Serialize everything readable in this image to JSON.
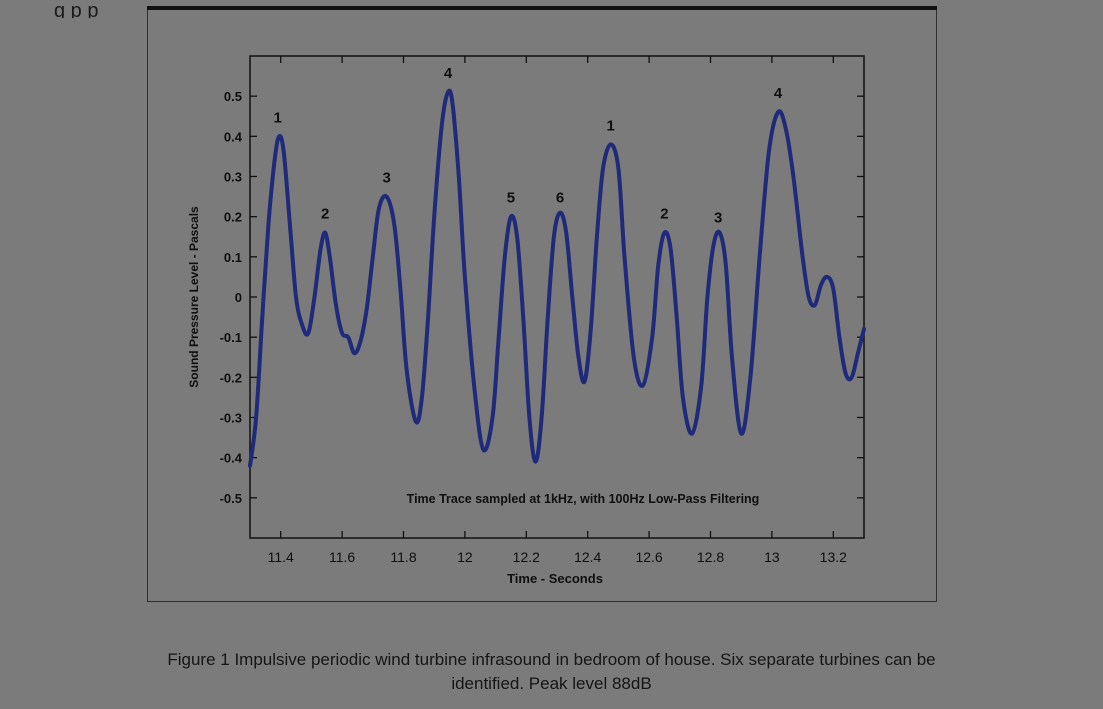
{
  "page": {
    "top_cut_text": "g     p     p",
    "caption_line1": "Figure 1  Impulsive periodic wind turbine infrasound in bedroom of house.  Six separate turbines can be",
    "caption_line2": "identified.  Peak level 88dB"
  },
  "colors": {
    "background": "#7b7b7b",
    "trace": "#1f2a7a",
    "axis": "#111111"
  },
  "chart_data": {
    "type": "line",
    "title": "",
    "annotation": "Time Trace sampled at 1kHz, with 100Hz Low-Pass Filtering",
    "xlabel": "Time - Seconds",
    "ylabel": "Sound Pressure Level - Pascals",
    "xlim": [
      11.3,
      13.3
    ],
    "ylim": [
      -0.6,
      0.6
    ],
    "x_ticks": [
      11.4,
      11.6,
      11.8,
      12,
      12.2,
      12.4,
      12.6,
      12.8,
      13,
      13.2
    ],
    "x_tick_labels": [
      "11.4",
      "11.6",
      "11.8",
      "12",
      "12.2",
      "12.4",
      "12.6",
      "12.8",
      "13",
      "13.2"
    ],
    "y_ticks": [
      -0.5,
      -0.4,
      -0.3,
      -0.2,
      -0.1,
      0,
      0.1,
      0.2,
      0.3,
      0.4,
      0.5
    ],
    "y_tick_labels": [
      "-0.5",
      "-0.4",
      "-0.3",
      "-0.2",
      "-0.1",
      "0",
      "0.1",
      "0.2",
      "0.3",
      "0.4",
      "0.5"
    ],
    "grid": false,
    "series": [
      {
        "x": [
          11.3,
          11.32,
          11.34,
          11.36,
          11.38,
          11.395,
          11.41,
          11.43,
          11.45,
          11.47,
          11.49,
          11.51,
          11.53,
          11.545,
          11.56,
          11.58,
          11.6,
          11.62,
          11.64,
          11.66,
          11.68,
          11.7,
          11.72,
          11.745,
          11.77,
          11.79,
          11.81,
          11.84,
          11.86,
          11.88,
          11.9,
          11.925,
          11.945,
          11.96,
          11.98,
          12.0,
          12.03,
          12.06,
          12.09,
          12.11,
          12.13,
          12.15,
          12.17,
          12.19,
          12.21,
          12.23,
          12.25,
          12.27,
          12.29,
          12.31,
          12.33,
          12.35,
          12.37,
          12.39,
          12.41,
          12.43,
          12.45,
          12.475,
          12.5,
          12.52,
          12.55,
          12.58,
          12.61,
          12.63,
          12.65,
          12.67,
          12.69,
          12.71,
          12.74,
          12.77,
          12.79,
          12.81,
          12.83,
          12.85,
          12.87,
          12.9,
          12.93,
          12.96,
          12.99,
          13.02,
          13.045,
          13.07,
          13.1,
          13.12,
          13.14,
          13.16,
          13.18,
          13.2,
          13.22,
          13.24,
          13.26,
          13.28,
          13.3
        ],
        "y": [
          -0.42,
          -0.3,
          -0.05,
          0.18,
          0.34,
          0.4,
          0.36,
          0.18,
          0.0,
          -0.07,
          -0.09,
          0.0,
          0.12,
          0.16,
          0.1,
          -0.02,
          -0.09,
          -0.1,
          -0.14,
          -0.11,
          -0.03,
          0.1,
          0.22,
          0.25,
          0.18,
          0.02,
          -0.18,
          -0.31,
          -0.25,
          -0.05,
          0.2,
          0.43,
          0.51,
          0.48,
          0.3,
          0.05,
          -0.22,
          -0.38,
          -0.3,
          -0.1,
          0.1,
          0.2,
          0.15,
          -0.05,
          -0.3,
          -0.41,
          -0.3,
          -0.05,
          0.15,
          0.21,
          0.16,
          0.0,
          -0.15,
          -0.21,
          -0.08,
          0.15,
          0.32,
          0.38,
          0.32,
          0.1,
          -0.15,
          -0.22,
          -0.1,
          0.08,
          0.16,
          0.12,
          -0.05,
          -0.25,
          -0.34,
          -0.22,
          0.0,
          0.13,
          0.16,
          0.08,
          -0.15,
          -0.34,
          -0.2,
          0.1,
          0.36,
          0.46,
          0.42,
          0.3,
          0.1,
          0.0,
          -0.02,
          0.03,
          0.05,
          0.02,
          -0.1,
          -0.19,
          -0.2,
          -0.14,
          -0.08
        ]
      }
    ],
    "peak_labels": [
      {
        "x": 11.39,
        "y": 0.42,
        "text": "1"
      },
      {
        "x": 11.545,
        "y": 0.18,
        "text": "2"
      },
      {
        "x": 11.745,
        "y": 0.27,
        "text": "3"
      },
      {
        "x": 11.945,
        "y": 0.53,
        "text": "4"
      },
      {
        "x": 12.15,
        "y": 0.22,
        "text": "5"
      },
      {
        "x": 12.31,
        "y": 0.22,
        "text": "6"
      },
      {
        "x": 12.475,
        "y": 0.4,
        "text": "1"
      },
      {
        "x": 12.65,
        "y": 0.18,
        "text": "2"
      },
      {
        "x": 12.825,
        "y": 0.17,
        "text": "3"
      },
      {
        "x": 13.02,
        "y": 0.48,
        "text": "4"
      }
    ]
  }
}
